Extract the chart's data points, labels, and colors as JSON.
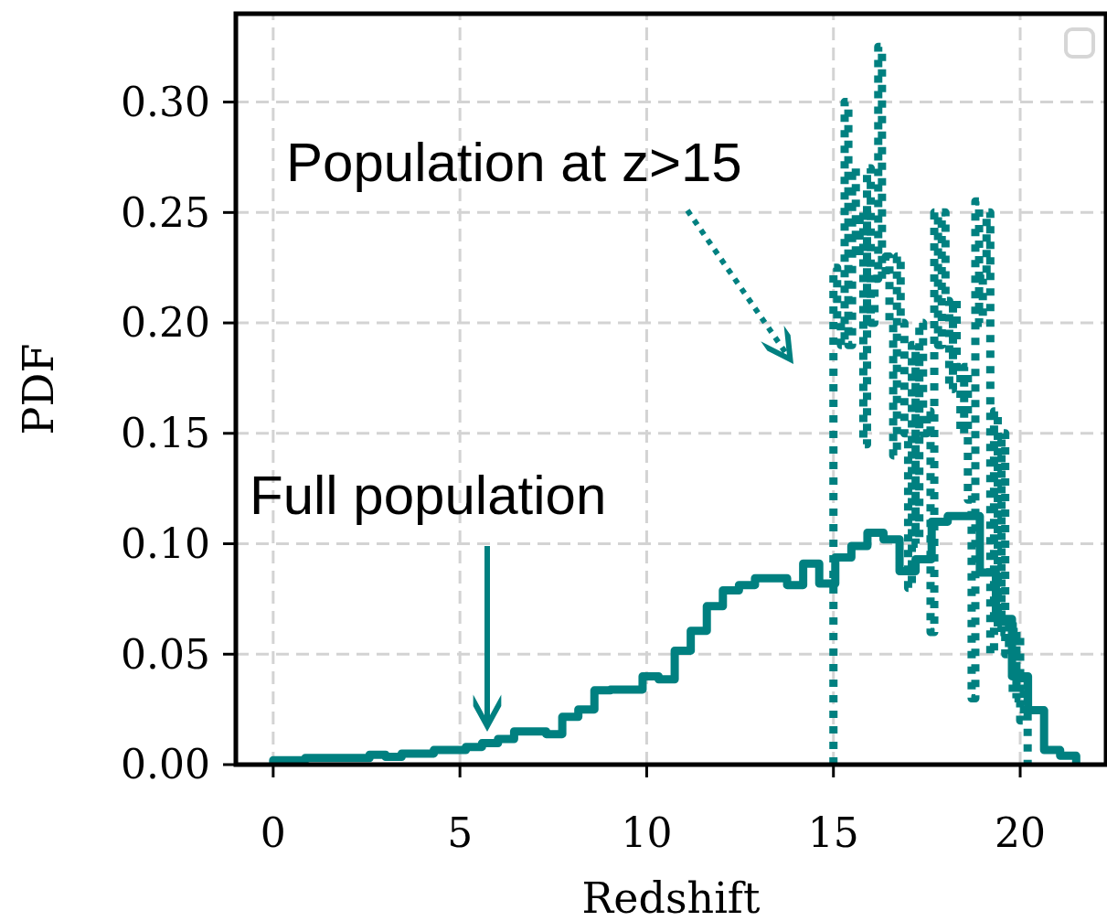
{
  "chart_data": {
    "type": "step",
    "xlabel": "Redshift",
    "ylabel": "PDF",
    "xlim": [
      -1,
      22.3
    ],
    "ylim": [
      0,
      0.34
    ],
    "xticks": [
      0,
      5,
      10,
      15,
      20
    ],
    "yticks": [
      {
        "value": 0,
        "label": "0.00"
      },
      {
        "value": 0.05,
        "label": "0.05"
      },
      {
        "value": 0.1,
        "label": "0.10"
      },
      {
        "value": 0.15,
        "label": "0.15"
      },
      {
        "value": 0.2,
        "label": "0.20"
      },
      {
        "value": 0.25,
        "label": "0.25"
      },
      {
        "value": 0.3,
        "label": "0.30"
      }
    ],
    "grid": true,
    "series": [
      {
        "color": "#008080",
        "line_style": "solid",
        "x": [
          0,
          0,
          0.43,
          0.86,
          1.29,
          1.72,
          2.15,
          2.58,
          3.01,
          3.44,
          3.87,
          4.3,
          4.73,
          5.16,
          5.59,
          6.02,
          6.45,
          6.88,
          7.31,
          7.74,
          8.17,
          8.6,
          9.03,
          9.46,
          9.89,
          10.32,
          10.75,
          11.18,
          11.61,
          12.04,
          12.47,
          12.9,
          13.33,
          13.76,
          14.19,
          14.62,
          15.05,
          15.48,
          15.91,
          16.34,
          16.77,
          17.2,
          17.63,
          18.06,
          18.49,
          18.92,
          19.35,
          19.78,
          20.21,
          20.64,
          21.07,
          21.5
        ],
        "values": [
          0,
          0.002,
          0.002,
          0.003,
          0.003,
          0.003,
          0.003,
          0.0045,
          0.0035,
          0.005,
          0.005,
          0.0066,
          0.0066,
          0.008,
          0.0097,
          0.0116,
          0.015,
          0.015,
          0.0138,
          0.0216,
          0.025,
          0.0336,
          0.034,
          0.034,
          0.04,
          0.0386,
          0.0516,
          0.0606,
          0.0717,
          0.0789,
          0.0813,
          0.0844,
          0.0844,
          0.0813,
          0.091,
          0.082,
          0.0938,
          0.099,
          0.105,
          0.102,
          0.0876,
          0.093,
          0.11,
          0.1125,
          0.1125,
          0.087,
          0.066,
          0.04,
          0.0246,
          0.0066,
          0.004,
          0
        ]
      },
      {
        "color": "#008080",
        "line_style": "dotted",
        "x": [
          15,
          15,
          15.1,
          15.2,
          15.3,
          15.4,
          15.5,
          15.6,
          15.7,
          15.8,
          15.9,
          16,
          16.1,
          16.2,
          16.3,
          16.4,
          16.5,
          16.6,
          16.7,
          16.8,
          16.9,
          17,
          17.1,
          17.2,
          17.3,
          17.4,
          17.5,
          17.6,
          17.7,
          17.8,
          17.9,
          18,
          18.1,
          18.2,
          18.3,
          18.4,
          18.5,
          18.6,
          18.7,
          18.8,
          18.9,
          19,
          19.1,
          19.2,
          19.3,
          19.4,
          19.5,
          19.6,
          19.7,
          19.8,
          19.9,
          20,
          20.1,
          20.2
        ],
        "values": [
          0,
          0.225,
          0.2,
          0.19,
          0.3,
          0.19,
          0.27,
          0.23,
          0.25,
          0.145,
          0.27,
          0.2,
          0.22,
          0.325,
          0.22,
          0.23,
          0.2,
          0.14,
          0.23,
          0.2,
          0.15,
          0.08,
          0.19,
          0.1,
          0.2,
          0.15,
          0.16,
          0.06,
          0.25,
          0.19,
          0.25,
          0.21,
          0.17,
          0.21,
          0.18,
          0.15,
          0.18,
          0.12,
          0.03,
          0.255,
          0.2,
          0.22,
          0.25,
          0.05,
          0.16,
          0.06,
          0.15,
          0.05,
          0.065,
          0.03,
          0.06,
          0.02,
          0.04,
          0
        ]
      }
    ],
    "annotations": [
      "Full population",
      "Population at z>15"
    ]
  }
}
